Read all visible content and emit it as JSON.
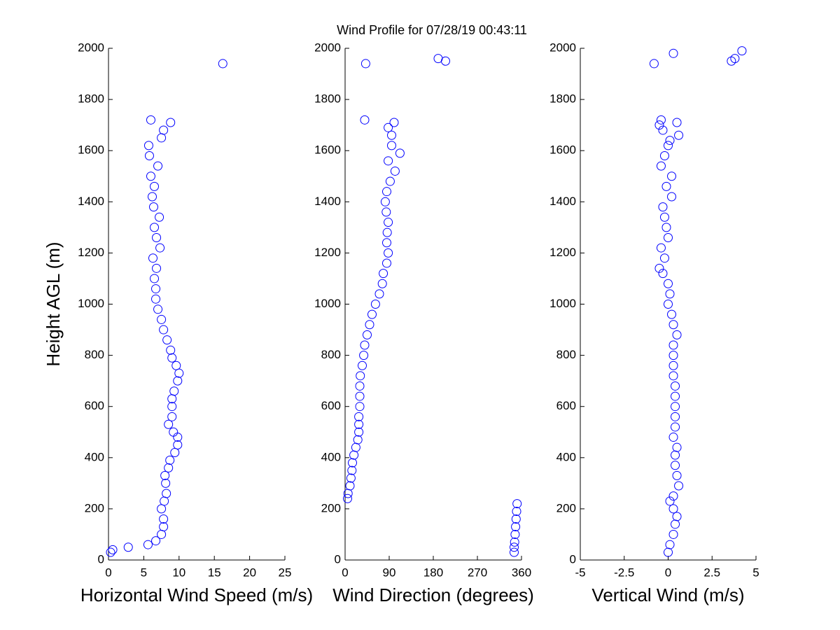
{
  "title": "Wind Profile for  07/28/19 00:43:11",
  "chart_data": [
    {
      "type": "scatter",
      "xlabel": "Horizontal Wind Speed (m/s)",
      "ylabel": "Height AGL (m)",
      "color": "#0000ff",
      "xlim": [
        0,
        25
      ],
      "xticks": [
        0,
        5,
        10,
        15,
        20,
        25
      ],
      "ylim": [
        0,
        2000
      ],
      "yticks": [
        0,
        200,
        400,
        600,
        800,
        1000,
        1200,
        1400,
        1600,
        1800,
        2000
      ],
      "x": [
        0.3,
        0.6,
        2.8,
        5.6,
        6.7,
        7.5,
        7.8,
        7.8,
        7.5,
        7.9,
        8.2,
        8.1,
        8.0,
        8.5,
        8.7,
        9.4,
        9.8,
        9.8,
        9.2,
        8.5,
        9.0,
        9.0,
        9.0,
        9.3,
        9.8,
        10.0,
        9.6,
        9.0,
        8.8,
        8.3,
        7.8,
        7.5,
        7.0,
        6.7,
        6.7,
        6.5,
        6.8,
        6.3,
        7.3,
        6.8,
        6.5,
        7.2,
        6.4,
        6.2,
        6.5,
        6.0,
        7.0,
        5.8,
        5.7,
        7.5,
        7.8,
        8.8,
        6.0,
        16.2
      ],
      "values": [
        30,
        40,
        50,
        60,
        75,
        100,
        130,
        160,
        200,
        230,
        260,
        300,
        330,
        360,
        390,
        420,
        450,
        480,
        500,
        530,
        560,
        600,
        630,
        660,
        700,
        730,
        760,
        790,
        820,
        860,
        900,
        940,
        980,
        1020,
        1060,
        1100,
        1140,
        1180,
        1220,
        1260,
        1300,
        1340,
        1380,
        1420,
        1460,
        1500,
        1540,
        1580,
        1620,
        1650,
        1680,
        1710,
        1720,
        1940
      ]
    },
    {
      "type": "scatter",
      "xlabel": "Wind Direction (degrees)",
      "color": "#0000ff",
      "xlim": [
        0,
        360
      ],
      "xticks": [
        0,
        90,
        180,
        270,
        360
      ],
      "ylim": [
        0,
        2000
      ],
      "yticks": [
        0,
        200,
        400,
        600,
        800,
        1000,
        1200,
        1400,
        1600,
        1800,
        2000
      ],
      "x": [
        345,
        345,
        346,
        347,
        348,
        349,
        350,
        351,
        5,
        6,
        10,
        12,
        14,
        15,
        18,
        22,
        26,
        28,
        28,
        28,
        30,
        30,
        30,
        31,
        35,
        38,
        40,
        45,
        50,
        55,
        62,
        70,
        76,
        78,
        85,
        88,
        85,
        86,
        88,
        84,
        82,
        85,
        92,
        102,
        88,
        112,
        95,
        95,
        88,
        100,
        40,
        42,
        205,
        190
      ],
      "values": [
        30,
        50,
        70,
        100,
        130,
        160,
        190,
        220,
        240,
        260,
        290,
        320,
        350,
        380,
        410,
        440,
        470,
        500,
        530,
        560,
        600,
        640,
        680,
        720,
        760,
        800,
        840,
        880,
        920,
        960,
        1000,
        1040,
        1080,
        1120,
        1160,
        1200,
        1240,
        1280,
        1320,
        1360,
        1400,
        1440,
        1480,
        1520,
        1560,
        1590,
        1620,
        1660,
        1690,
        1710,
        1720,
        1940,
        1950,
        1960
      ]
    },
    {
      "type": "scatter",
      "xlabel": "Vertical Wind (m/s)",
      "color": "#0000ff",
      "xlim": [
        -5,
        5
      ],
      "xticks": [
        -5,
        -2.5,
        0,
        2.5,
        5
      ],
      "ylim": [
        0,
        2000
      ],
      "yticks": [
        0,
        200,
        400,
        600,
        800,
        1000,
        1200,
        1400,
        1600,
        1800,
        2000
      ],
      "x": [
        0,
        0.1,
        0.3,
        0.4,
        0.5,
        0.3,
        0.1,
        0.3,
        0.6,
        0.5,
        0.4,
        0.4,
        0.5,
        0.3,
        0.4,
        0.4,
        0.4,
        0.4,
        0.4,
        0.3,
        0.3,
        0.3,
        0.3,
        0.5,
        0.3,
        0.2,
        0,
        0.1,
        0,
        -0.3,
        -0.5,
        -0.2,
        -0.4,
        0,
        -0.1,
        -0.2,
        -0.3,
        0.2,
        -0.1,
        0.2,
        -0.4,
        -0.2,
        0,
        0.1,
        0.6,
        -0.3,
        -0.5,
        0.5,
        -0.4,
        -0.8,
        3.6,
        3.8,
        0.3,
        4.2
      ],
      "values": [
        30,
        60,
        100,
        140,
        170,
        200,
        230,
        250,
        290,
        330,
        370,
        410,
        440,
        480,
        520,
        560,
        600,
        640,
        680,
        720,
        760,
        800,
        840,
        880,
        920,
        960,
        1000,
        1040,
        1080,
        1120,
        1140,
        1180,
        1220,
        1260,
        1300,
        1340,
        1380,
        1420,
        1460,
        1500,
        1540,
        1580,
        1620,
        1640,
        1660,
        1680,
        1700,
        1710,
        1720,
        1940,
        1950,
        1960,
        1980,
        1990
      ]
    }
  ]
}
